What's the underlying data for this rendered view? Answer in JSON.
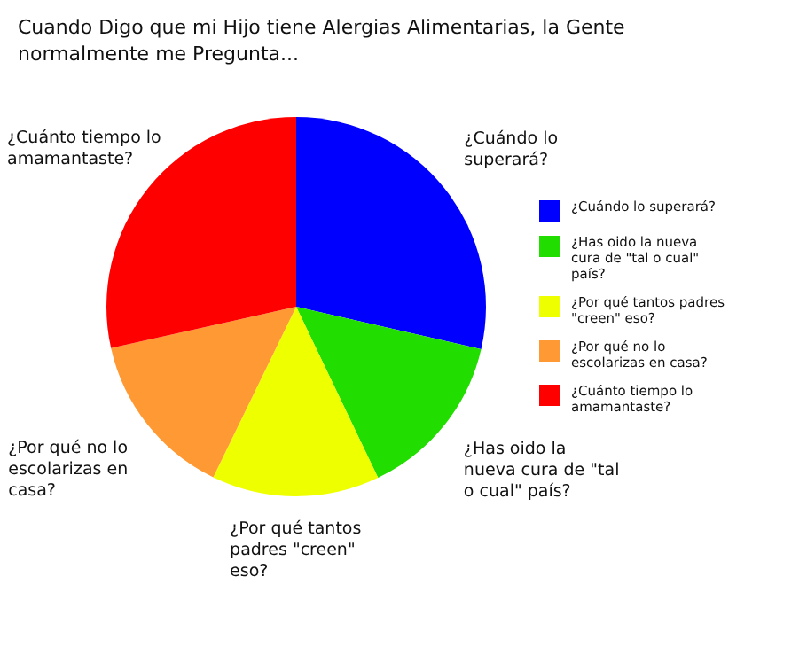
{
  "chart_data": {
    "type": "pie",
    "title": "Cuando Digo que mi Hijo tiene Alergias Alimentarias, la Gente normalmente me Pregunta...",
    "categories": [
      "¿Cuándo lo superará?",
      "¿Has oido la nueva cura de \"tal o cual\" país?",
      "¿Por qué tantos padres \"creen\" eso?",
      "¿Por qué no lo escolarizas en casa?",
      "¿Cuánto tiempo lo amamantaste?"
    ],
    "values": [
      28.6,
      14.3,
      14.3,
      14.3,
      28.5
    ],
    "colors": [
      "#0000ff",
      "#22dd00",
      "#eeff00",
      "#ff9933",
      "#ff0000"
    ],
    "legend": "right"
  }
}
